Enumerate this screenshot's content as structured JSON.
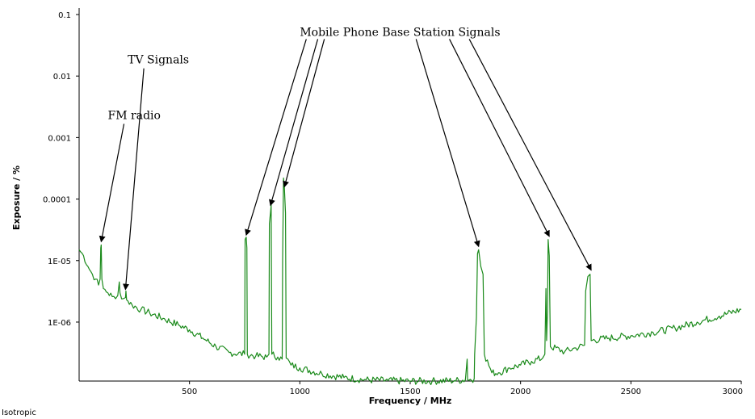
{
  "chart_data": {
    "type": "line",
    "xlabel": "Frequency / MHz",
    "ylabel": "Exposure / %",
    "footer": "Isotropic",
    "xlim": [
      0,
      3000
    ],
    "ylim": [
      1.1e-07,
      0.1
    ],
    "yscale": "log",
    "x_ticks": [
      {
        "value": 500,
        "label": "500"
      },
      {
        "value": 1000,
        "label": "1000"
      },
      {
        "value": 1500,
        "label": "1500"
      },
      {
        "value": 2000,
        "label": "2000"
      },
      {
        "value": 2500,
        "label": "2500"
      },
      {
        "value": 3000,
        "label": "3000"
      }
    ],
    "y_ticks": [
      {
        "value": 0.1,
        "label": "0.1"
      },
      {
        "value": 0.01,
        "label": "0.01"
      },
      {
        "value": 0.001,
        "label": "0.001"
      },
      {
        "value": 0.0001,
        "label": "0.0001"
      },
      {
        "value": 1e-05,
        "label": "1E-05"
      },
      {
        "value": 1e-06,
        "label": "1E-06"
      }
    ],
    "series": [
      {
        "color": "#1a8a1a",
        "points": [
          [
            0,
            1.5e-05
          ],
          [
            20,
            1.2e-05
          ],
          [
            40,
            8e-06
          ],
          [
            60,
            6e-06
          ],
          [
            75,
            5e-06
          ],
          [
            88,
            4e-06
          ],
          [
            95,
            5e-06
          ],
          [
            98,
            1.6e-05
          ],
          [
            100,
            1.8e-05
          ],
          [
            103,
            5e-06
          ],
          [
            110,
            3.5e-06
          ],
          [
            130,
            3e-06
          ],
          [
            150,
            2.6e-06
          ],
          [
            165,
            2.4e-06
          ],
          [
            175,
            2.7e-06
          ],
          [
            182,
            4.5e-06
          ],
          [
            185,
            3e-06
          ],
          [
            200,
            2.4e-06
          ],
          [
            210,
            2.5e-06
          ],
          [
            212,
            3.2e-06
          ],
          [
            215,
            2.3e-06
          ],
          [
            240,
            1.9e-06
          ],
          [
            280,
            1.6e-06
          ],
          [
            320,
            1.4e-06
          ],
          [
            380,
            1.15e-06
          ],
          [
            450,
            9e-07
          ],
          [
            500,
            7.5e-07
          ],
          [
            560,
            5.5e-07
          ],
          [
            620,
            4e-07
          ],
          [
            680,
            3.2e-07
          ],
          [
            750,
            3e-07
          ],
          [
            752,
            2.2e-05
          ],
          [
            757,
            2.4e-05
          ],
          [
            760,
            1.6e-05
          ],
          [
            762,
            3e-07
          ],
          [
            800,
            2.8e-07
          ],
          [
            850,
            2.7e-07
          ],
          [
            860,
            3e-07
          ],
          [
            862,
            4e-05
          ],
          [
            867,
            6e-05
          ],
          [
            870,
            8e-05
          ],
          [
            873,
            3e-07
          ],
          [
            900,
            2.7e-07
          ],
          [
            920,
            2.5e-07
          ],
          [
            922,
            1e-05
          ],
          [
            926,
            0.00022
          ],
          [
            930,
            0.00015
          ],
          [
            935,
            6e-05
          ],
          [
            938,
            2.6e-07
          ],
          [
            960,
            2e-07
          ],
          [
            1000,
            1.8e-07
          ],
          [
            1100,
            1.45e-07
          ],
          [
            1200,
            1.25e-07
          ],
          [
            1300,
            1.15e-07
          ],
          [
            1400,
            1.12e-07
          ],
          [
            1500,
            1.1e-07
          ],
          [
            1600,
            1.1e-07
          ],
          [
            1700,
            1.12e-07
          ],
          [
            1750,
            1.15e-07
          ],
          [
            1758,
            2.5e-07
          ],
          [
            1760,
            1.15e-07
          ],
          [
            1790,
            1.2e-07
          ],
          [
            1792,
            3e-07
          ],
          [
            1800,
            1.2e-06
          ],
          [
            1805,
            1.3e-05
          ],
          [
            1810,
            1.5e-05
          ],
          [
            1820,
            8e-06
          ],
          [
            1830,
            6e-06
          ],
          [
            1836,
            3e-07
          ],
          [
            1870,
            1.5e-07
          ],
          [
            1900,
            1.5e-07
          ],
          [
            1950,
            1.8e-07
          ],
          [
            2000,
            2e-07
          ],
          [
            2050,
            2.3e-07
          ],
          [
            2100,
            2.6e-07
          ],
          [
            2110,
            3e-07
          ],
          [
            2115,
            3.5e-06
          ],
          [
            2118,
            5e-07
          ],
          [
            2122,
            1.5e-06
          ],
          [
            2125,
            2.2e-05
          ],
          [
            2130,
            1.2e-05
          ],
          [
            2135,
            4e-07
          ],
          [
            2200,
            3.3e-07
          ],
          [
            2250,
            3.8e-07
          ],
          [
            2290,
            4.2e-07
          ],
          [
            2295,
            3.2e-06
          ],
          [
            2305,
            5.5e-06
          ],
          [
            2315,
            6e-06
          ],
          [
            2320,
            5e-07
          ],
          [
            2400,
            5.5e-07
          ],
          [
            2500,
            6e-07
          ],
          [
            2600,
            6.8e-07
          ],
          [
            2700,
            8e-07
          ],
          [
            2800,
            1e-06
          ],
          [
            2900,
            1.25e-06
          ],
          [
            3000,
            1.6e-06
          ]
        ]
      }
    ],
    "annotations": [
      {
        "text": "FM radio",
        "tx": 130,
        "ty": 0.002,
        "arrows": [
          [
            100,
            1.8e-05
          ]
        ]
      },
      {
        "text": "TV Signals",
        "tx": 220,
        "ty": 0.016,
        "arrows": [
          [
            210,
            3e-06
          ]
        ]
      },
      {
        "text": "Mobile Phone Base Station Signals",
        "tx": 1000,
        "ty": 0.045,
        "arrows": [
          [
            757,
            2.3e-05
          ],
          [
            867,
            7e-05
          ],
          [
            930,
            0.00014
          ],
          [
            1810,
            1.5e-05
          ],
          [
            2130,
            2.2e-05
          ],
          [
            2320,
            6.2e-06
          ]
        ]
      }
    ]
  }
}
